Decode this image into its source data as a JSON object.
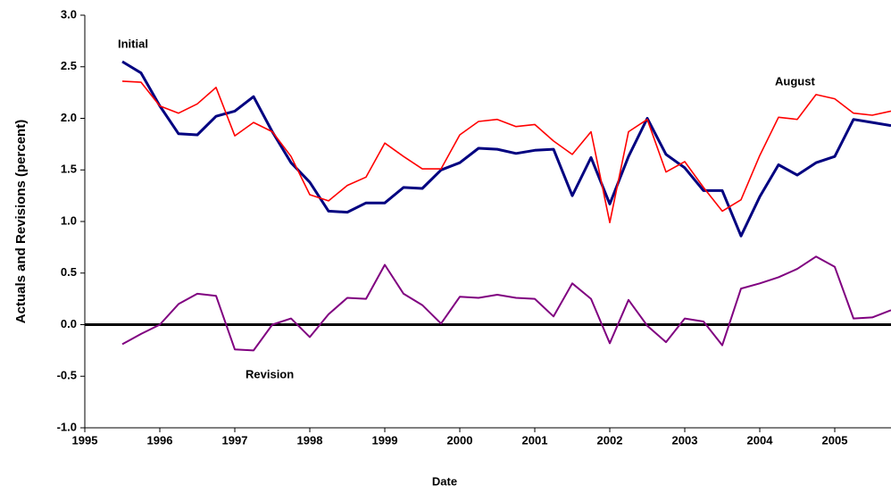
{
  "chart_data": {
    "type": "line",
    "xlabel": "Date",
    "ylabel": "Actuals and Revisions (percent)",
    "x": [
      1995.5,
      1995.75,
      1996,
      1996.25,
      1996.5,
      1996.75,
      1997,
      1997.25,
      1997.5,
      1997.75,
      1998,
      1998.25,
      1998.5,
      1998.75,
      1999,
      1999.25,
      1999.5,
      1999.75,
      2000,
      2000.25,
      2000.5,
      2000.75,
      2001,
      2001.25,
      2001.5,
      2001.75,
      2002,
      2002.25,
      2002.5,
      2002.75,
      2003,
      2003.25,
      2003.5,
      2003.75,
      2004,
      2004.25,
      2004.5,
      2004.75,
      2005,
      2005.25,
      2005.5,
      2005.75
    ],
    "series": [
      {
        "name": "Initial",
        "color": "#000080",
        "width": 3,
        "values": [
          2.55,
          2.44,
          2.12,
          1.85,
          1.84,
          2.02,
          2.07,
          2.21,
          1.87,
          1.57,
          1.38,
          1.1,
          1.09,
          1.18,
          1.18,
          1.33,
          1.32,
          1.5,
          1.57,
          1.71,
          1.7,
          1.66,
          1.69,
          1.7,
          1.25,
          1.62,
          1.17,
          1.63,
          2.0,
          1.65,
          1.52,
          1.3,
          1.3,
          0.86,
          1.24,
          1.55,
          1.45,
          1.57,
          1.63,
          1.99,
          1.96,
          1.93
        ]
      },
      {
        "name": "August",
        "color": "#ff0000",
        "width": 1.6,
        "values": [
          2.36,
          2.35,
          2.12,
          2.05,
          2.14,
          2.3,
          1.83,
          1.96,
          1.87,
          1.63,
          1.26,
          1.2,
          1.35,
          1.43,
          1.76,
          1.63,
          1.51,
          1.51,
          1.84,
          1.97,
          1.99,
          1.92,
          1.94,
          1.78,
          1.65,
          1.87,
          0.99,
          1.87,
          1.99,
          1.48,
          1.58,
          1.33,
          1.1,
          1.21,
          1.64,
          2.01,
          1.99,
          2.23,
          2.19,
          2.05,
          2.03,
          2.07
        ]
      },
      {
        "name": "Revision",
        "color": "#800080",
        "width": 2,
        "values": [
          -0.19,
          -0.09,
          0.0,
          0.2,
          0.3,
          0.28,
          -0.24,
          -0.25,
          0.0,
          0.06,
          -0.12,
          0.1,
          0.26,
          0.25,
          0.58,
          0.3,
          0.19,
          0.01,
          0.27,
          0.26,
          0.29,
          0.26,
          0.25,
          0.08,
          0.4,
          0.25,
          -0.18,
          0.24,
          -0.01,
          -0.17,
          0.06,
          0.03,
          -0.2,
          0.35,
          0.4,
          0.46,
          0.54,
          0.66,
          0.56,
          0.06,
          0.07,
          0.14
        ]
      }
    ],
    "xlim": [
      1995,
      2005.75
    ],
    "xticks": [
      1995,
      1996,
      1997,
      1998,
      1999,
      2000,
      2001,
      2002,
      2003,
      2004,
      2005
    ],
    "ylim": [
      -1,
      3
    ],
    "yticks": [
      {
        "value": -1,
        "label": "-1.0"
      },
      -0.5,
      {
        "value": 0,
        "label": "0.0"
      },
      0.5,
      {
        "value": 1,
        "label": "1.0"
      },
      1.5,
      {
        "value": 2,
        "label": "2.0"
      },
      2.5,
      {
        "value": 3,
        "label": "3.0"
      }
    ],
    "zero_line": true,
    "grid": false
  }
}
